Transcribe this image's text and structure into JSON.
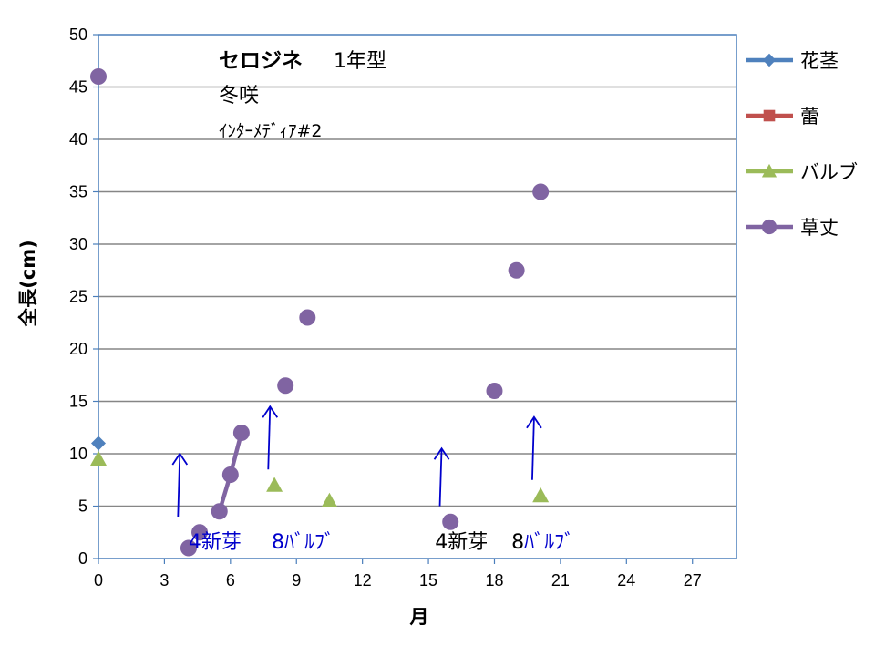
{
  "colors": {
    "flower_stem": "#4F81BD",
    "bud": "#C0504D",
    "bulb": "#9BBB59",
    "plant_height": "#8064A2",
    "arrow": "#0000CC",
    "annotation_blue": "#0000CC",
    "annotation_black": "#000000",
    "gridline": "#868686",
    "plot_border": "#4A7EBB"
  },
  "chart_data": {
    "type": "scatter",
    "title_lines": [
      "セロジネ",
      "1年型",
      "冬咲",
      "ｲﾝﾀｰﾒﾃﾞｨｱ#2"
    ],
    "xlabel": "月",
    "ylabel": "全長(cm)",
    "xlim": [
      0,
      29
    ],
    "ylim": [
      0,
      50
    ],
    "xticks": [
      0,
      3,
      6,
      9,
      12,
      15,
      18,
      21,
      24,
      27
    ],
    "yticks": [
      0,
      5,
      10,
      15,
      20,
      25,
      30,
      35,
      40,
      45,
      50
    ],
    "grid": "horizontal",
    "legend_position": "right",
    "series": [
      {
        "name": "花茎",
        "marker": "diamond",
        "color": "#4F81BD",
        "points": [
          [
            0,
            11
          ]
        ]
      },
      {
        "name": "蕾",
        "marker": "square",
        "color": "#C0504D",
        "points": []
      },
      {
        "name": "バルブ",
        "marker": "triangle",
        "color": "#9BBB59",
        "points": [
          [
            0,
            9.5
          ],
          [
            8,
            7
          ],
          [
            10.5,
            5.5
          ],
          [
            20.1,
            6
          ]
        ]
      },
      {
        "name": "草丈",
        "marker": "circle",
        "color": "#8064A2",
        "points": [
          [
            0,
            46
          ],
          [
            4.1,
            1
          ],
          [
            4.6,
            2.5
          ],
          [
            5.5,
            4.5
          ],
          [
            6,
            8
          ],
          [
            6.5,
            12
          ],
          [
            8.5,
            16.5
          ],
          [
            9.5,
            23
          ],
          [
            16,
            3.5
          ],
          [
            18,
            16
          ],
          [
            19,
            27.5
          ],
          [
            20.1,
            35
          ]
        ],
        "line_segment": [
          [
            5.5,
            4.5
          ],
          [
            6,
            8
          ],
          [
            6.5,
            12
          ]
        ]
      }
    ],
    "arrows": [
      {
        "x": 3.7,
        "y_from": 4,
        "y_to": 10
      },
      {
        "x": 7.8,
        "y_from": 8.5,
        "y_to": 14.5
      },
      {
        "x": 15.6,
        "y_from": 5,
        "y_to": 10.5
      },
      {
        "x": 19.8,
        "y_from": 7.5,
        "y_to": 13.5
      }
    ],
    "annotations": [
      {
        "text": "4新芽",
        "x": 5.3,
        "y": 1.3,
        "color": "#0000CC"
      },
      {
        "text": "8ﾊﾞﾙﾌﾞ",
        "x": 9.3,
        "y": 1.3,
        "color": "#0000CC"
      },
      {
        "text_parts": [
          {
            "text": "4新芽",
            "color": "#000000"
          }
        ],
        "x": 16.5,
        "y": 1.3
      },
      {
        "text_parts": [
          {
            "text": "8",
            "color": "#000000"
          },
          {
            "text": "ﾊﾞﾙﾌﾞ",
            "color": "#0000CC"
          }
        ],
        "x": 20.2,
        "y": 1.3
      }
    ]
  }
}
